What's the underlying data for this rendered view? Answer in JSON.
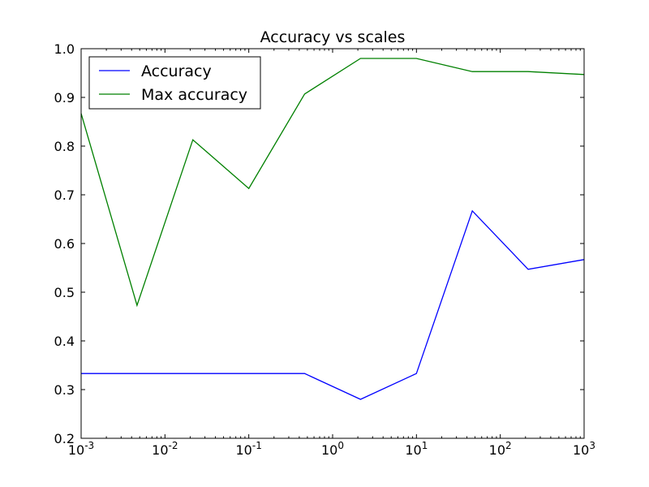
{
  "chart_data": {
    "type": "line",
    "title": "Accuracy vs scales",
    "xlabel": "",
    "ylabel": "",
    "x_scale": "log",
    "xlim": [
      0.001,
      1000
    ],
    "ylim": [
      0.2,
      1.0
    ],
    "x_ticks": [
      {
        "value": 0.001,
        "base": "10",
        "exp": "-3"
      },
      {
        "value": 0.01,
        "base": "10",
        "exp": "-2"
      },
      {
        "value": 0.1,
        "base": "10",
        "exp": "-1"
      },
      {
        "value": 1,
        "base": "10",
        "exp": "0"
      },
      {
        "value": 10,
        "base": "10",
        "exp": "1"
      },
      {
        "value": 100,
        "base": "10",
        "exp": "2"
      },
      {
        "value": 1000,
        "base": "10",
        "exp": "3"
      }
    ],
    "y_ticks": [
      {
        "value": 0.2,
        "label": "0.2"
      },
      {
        "value": 0.3,
        "label": "0.3"
      },
      {
        "value": 0.4,
        "label": "0.4"
      },
      {
        "value": 0.5,
        "label": "0.5"
      },
      {
        "value": 0.6,
        "label": "0.6"
      },
      {
        "value": 0.7,
        "label": "0.7"
      },
      {
        "value": 0.8,
        "label": "0.8"
      },
      {
        "value": 0.9,
        "label": "0.9"
      },
      {
        "value": 1.0,
        "label": "1.0"
      }
    ],
    "x": [
      0.001,
      0.00464,
      0.0215,
      0.1,
      0.464,
      2.15,
      10,
      46.4,
      215,
      1000
    ],
    "series": [
      {
        "name": "Accuracy",
        "color": "#0000ff",
        "values": [
          0.333,
          0.333,
          0.333,
          0.333,
          0.333,
          0.28,
          0.333,
          0.667,
          0.547,
          0.567
        ]
      },
      {
        "name": "Max accuracy",
        "color": "#008000",
        "values": [
          0.867,
          0.473,
          0.813,
          0.713,
          0.907,
          0.98,
          0.98,
          0.953,
          0.953,
          0.947
        ]
      }
    ],
    "legend": "upper-left",
    "grid": false
  }
}
